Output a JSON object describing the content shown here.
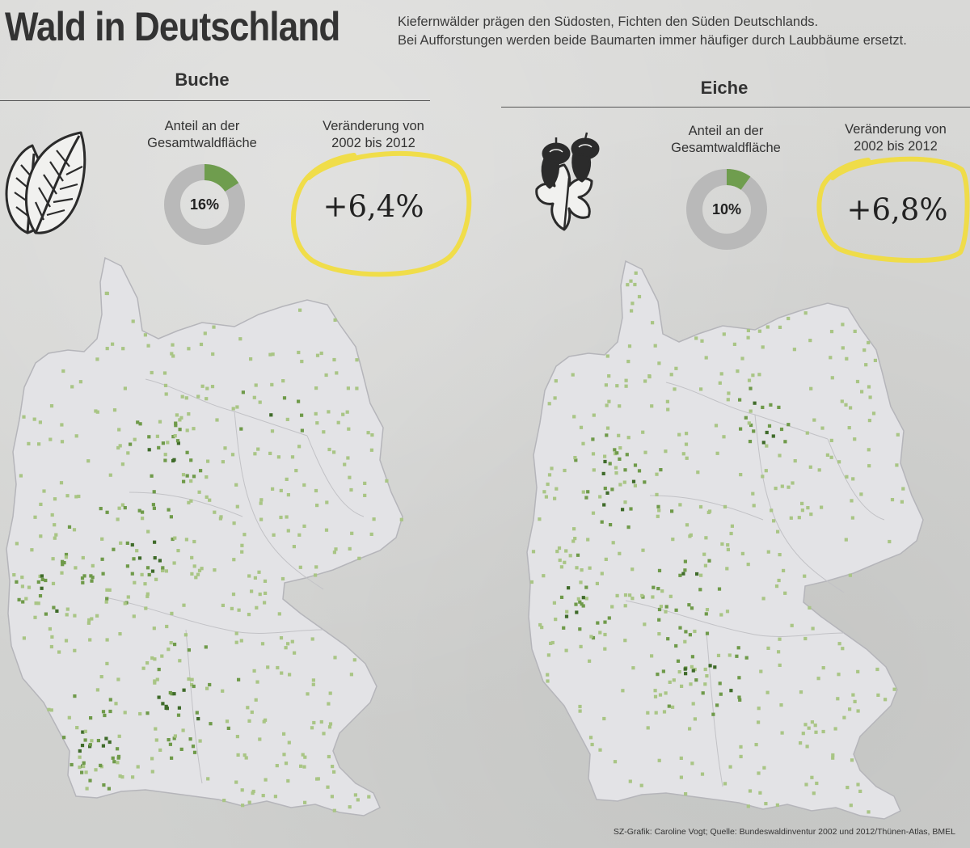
{
  "header": {
    "title": "Wald in Deutschland",
    "intro_line1": "Kiefernwälder prägen den Südosten, Fichten den Süden Deutschlands.",
    "intro_line2": "Bei Aufforstungen werden beide Baumarten immer häufiger durch Laubbäume ersetzt."
  },
  "species": [
    {
      "name": "Buche",
      "share_label_line1": "Anteil an der",
      "share_label_line2": "Gesamtwaldfläche",
      "share_value": "16%",
      "share_fraction": 0.16,
      "change_label_line1": "Veränderung von",
      "change_label_line2": "2002 bis 2012",
      "change_value": "+6,4%",
      "icon": "beech-leaf-icon"
    },
    {
      "name": "Eiche",
      "share_label_line1": "Anteil an der",
      "share_label_line2": "Gesamtwaldfläche",
      "share_value": "10%",
      "share_fraction": 0.1,
      "change_label_line1": "Veränderung von",
      "change_label_line2": "2002 bis 2012",
      "change_value": "+6,8%",
      "icon": "oak-leaf-acorn-icon"
    }
  ],
  "footer": {
    "credit": "SZ-Grafik: Caroline Vogt; Quelle: Bundeswaldinventur 2002 und 2012/Thünen-Atlas, BMEL"
  },
  "colors": {
    "donut_track": "#b9b9b9",
    "donut_share": "#6f9d4e",
    "dot_dark": "#3f6b2a",
    "dot_mid": "#6f9a4a",
    "dot_light": "#a9c585",
    "map_fill": "#e3e3e6",
    "map_border": "#b5b5ba",
    "highlight": "#f2dd3a"
  }
}
